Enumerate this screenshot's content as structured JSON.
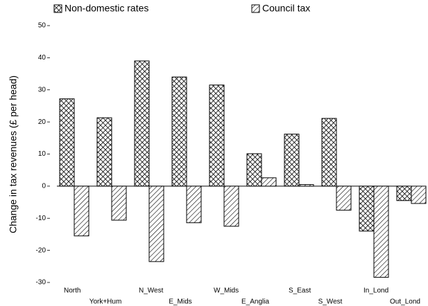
{
  "chart_data": {
    "type": "bar",
    "y_label": "Change in tax revenues (£ per head)",
    "categories": [
      "North",
      "York+Hum",
      "N_West",
      "E_Mids",
      "W_Mids",
      "E_Anglia",
      "S_East",
      "S_West",
      "In_Lond",
      "Out_Lond"
    ],
    "series": [
      {
        "name": "Non-domestic rates",
        "color": "#000000",
        "pattern": "crosshatch",
        "values": [
          27.2,
          21.3,
          39,
          34,
          31.5,
          10.1,
          16.2,
          21.1,
          -14,
          -4.5
        ]
      },
      {
        "name": "Council tax",
        "color": "#000000",
        "pattern": "diagonal",
        "values": [
          -15.5,
          -10.6,
          -23.5,
          -11.4,
          -12.5,
          2.6,
          0.5,
          -7.5,
          -28.4,
          -5.4
        ]
      }
    ],
    "ylim": [
      -30,
      50
    ],
    "yticks": [
      -30,
      -20,
      -10,
      0,
      10,
      20,
      30,
      40,
      50
    ]
  }
}
